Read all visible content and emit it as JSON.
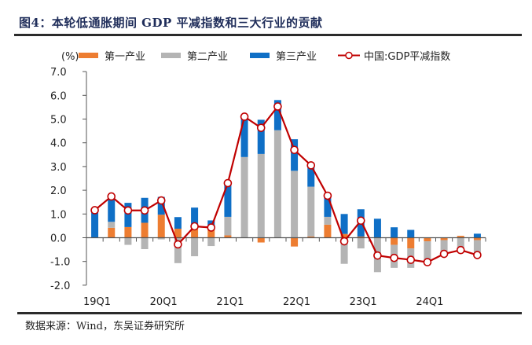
{
  "header": {
    "title": "图4：本轮低通胀期间 GDP 平减指数和三大行业的贡献"
  },
  "footer": {
    "source": "数据来源：Wind，东吴证券研究所"
  },
  "colors": {
    "primary": "#ed7d31",
    "secondary": "#b4b4b4",
    "tertiary": "#0f6fc6",
    "line": "#c00000",
    "title": "#1f2d5a"
  },
  "chart_data": {
    "type": "bar",
    "stacked": true,
    "title": "",
    "unit_label": "(%)",
    "xlabel": "",
    "ylabel": "(%)",
    "ylim": [
      -2.0,
      7.0
    ],
    "yticks": [
      "-2.0",
      "-1.0",
      "0.0",
      "1.0",
      "2.0",
      "3.0",
      "4.0",
      "5.0",
      "6.0",
      "7.0"
    ],
    "ytick_values": [
      -2,
      -1,
      0,
      1,
      2,
      3,
      4,
      5,
      6,
      7
    ],
    "categories": [
      "19Q1",
      "19Q2",
      "19Q3",
      "19Q4",
      "20Q1",
      "20Q2",
      "20Q3",
      "20Q4",
      "21Q1",
      "21Q2",
      "21Q3",
      "21Q4",
      "22Q1",
      "22Q2",
      "22Q3",
      "22Q4",
      "23Q1",
      "23Q2",
      "23Q3",
      "23Q4",
      "24Q1",
      "24Q2",
      "24Q3",
      "24Q4"
    ],
    "xtick_labels": [
      {
        "label": "19Q1",
        "index": 0
      },
      {
        "label": "20Q1",
        "index": 4
      },
      {
        "label": "21Q1",
        "index": 8
      },
      {
        "label": "22Q1",
        "index": 12
      },
      {
        "label": "23Q1",
        "index": 16
      },
      {
        "label": "24Q1",
        "index": 20
      }
    ],
    "legend_position": "top",
    "series": [
      {
        "name": "第一产业",
        "kind": "bar",
        "color": "#ed7d31",
        "values": [
          0.0,
          0.42,
          0.45,
          0.63,
          0.97,
          0.38,
          0.4,
          0.33,
          0.1,
          0.0,
          -0.2,
          0.0,
          -0.37,
          0.05,
          0.55,
          0.16,
          0.05,
          0.0,
          -0.3,
          -0.45,
          -0.15,
          -0.1,
          0.08,
          -0.1
        ]
      },
      {
        "name": "第二产业",
        "kind": "bar",
        "color": "#b4b4b4",
        "values": [
          0.0,
          0.25,
          -0.3,
          -0.48,
          -0.07,
          -1.07,
          -0.78,
          -0.35,
          0.78,
          3.4,
          3.53,
          4.53,
          2.82,
          2.1,
          0.33,
          -1.1,
          -0.45,
          -1.45,
          -0.97,
          -0.82,
          -0.9,
          -0.55,
          -0.55,
          -0.55
        ]
      },
      {
        "name": "第三产业",
        "kind": "bar",
        "color": "#0f6fc6",
        "values": [
          1.12,
          0.98,
          1.02,
          1.05,
          0.75,
          0.49,
          0.87,
          0.4,
          1.4,
          1.7,
          1.44,
          1.27,
          1.33,
          0.92,
          0.89,
          0.84,
          1.15,
          0.8,
          0.44,
          0.33,
          0.0,
          0.0,
          0.0,
          0.17
        ]
      },
      {
        "name": "中国:GDP平减指数",
        "kind": "line",
        "color": "#c00000",
        "marker": "circle-open",
        "values": [
          1.16,
          1.74,
          1.15,
          1.15,
          1.57,
          -0.28,
          0.48,
          0.43,
          2.3,
          5.1,
          4.63,
          5.53,
          3.7,
          3.05,
          1.77,
          -0.15,
          0.72,
          -0.75,
          -0.85,
          -0.93,
          -1.03,
          -0.68,
          -0.52,
          -0.73
        ]
      }
    ],
    "grid": false
  }
}
